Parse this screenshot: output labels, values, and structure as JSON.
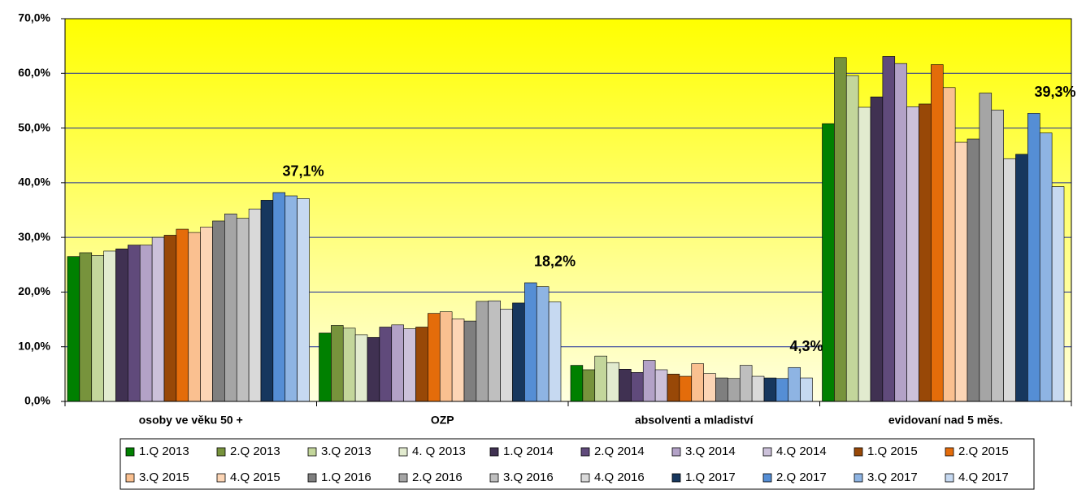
{
  "chart_data": {
    "type": "bar",
    "categories": [
      "osoby ve věku 50 +",
      "OZP",
      "absolventi a mladiství",
      "evidovaní nad 5 měs."
    ],
    "ylim": [
      0,
      70
    ],
    "yticks": [
      {
        "value": 0,
        "label": "0,0%"
      },
      {
        "value": 10,
        "label": "10,0%"
      },
      {
        "value": 20,
        "label": "20,0%"
      },
      {
        "value": 30,
        "label": "30,0%"
      },
      {
        "value": 40,
        "label": "40,0%"
      },
      {
        "value": 50,
        "label": "50,0%"
      },
      {
        "value": 60,
        "label": "60,0%"
      },
      {
        "value": 70,
        "label": "70,0%"
      }
    ],
    "grid": true,
    "legend": "bottom",
    "series": [
      {
        "name": "1.Q 2013",
        "color": "#008000",
        "values": [
          26.5,
          12.5,
          6.6,
          50.8
        ]
      },
      {
        "name": "2.Q 2013",
        "color": "#77933c",
        "values": [
          27.2,
          13.9,
          5.8,
          62.9
        ]
      },
      {
        "name": "3.Q 2013",
        "color": "#c3d69b",
        "values": [
          26.7,
          13.4,
          8.3,
          59.6
        ]
      },
      {
        "name": "4. Q 2013",
        "color": "#e2ebcf",
        "values": [
          27.5,
          12.2,
          7.1,
          53.8
        ]
      },
      {
        "name": "1.Q 2014",
        "color": "#403152",
        "values": [
          27.9,
          11.7,
          5.9,
          55.7
        ]
      },
      {
        "name": "2.Q 2014",
        "color": "#604a7b",
        "values": [
          28.6,
          13.6,
          5.3,
          63.1
        ]
      },
      {
        "name": "3.Q 2014",
        "color": "#b3a2c7",
        "values": [
          28.6,
          14.0,
          7.5,
          61.8
        ]
      },
      {
        "name": "4.Q 2014",
        "color": "#ccc1da",
        "values": [
          30.0,
          13.3,
          5.8,
          53.9
        ]
      },
      {
        "name": "1.Q 2015",
        "color": "#984807",
        "values": [
          30.4,
          13.6,
          5.0,
          54.4
        ]
      },
      {
        "name": "2.Q 2015",
        "color": "#e46c0a",
        "values": [
          31.5,
          16.1,
          4.6,
          61.6
        ]
      },
      {
        "name": "3.Q 2015",
        "color": "#fac090",
        "values": [
          30.9,
          16.4,
          6.9,
          57.4
        ]
      },
      {
        "name": "4.Q 2015",
        "color": "#fcd5b5",
        "values": [
          31.9,
          15.1,
          5.1,
          47.4
        ]
      },
      {
        "name": "1.Q 2016",
        "color": "#7f7f7f",
        "values": [
          33.0,
          14.7,
          4.3,
          48.0
        ]
      },
      {
        "name": "2.Q 2016",
        "color": "#a5a5a5",
        "values": [
          34.3,
          18.3,
          4.2,
          56.4
        ]
      },
      {
        "name": "3.Q 2016",
        "color": "#bfbfbf",
        "values": [
          33.5,
          18.4,
          6.6,
          53.3
        ]
      },
      {
        "name": "4.Q 2016",
        "color": "#d9d9d9",
        "values": [
          35.2,
          16.9,
          4.6,
          44.4
        ]
      },
      {
        "name": "1.Q 2017",
        "color": "#17375e",
        "values": [
          36.8,
          18.0,
          4.3,
          45.2
        ]
      },
      {
        "name": "2.Q 2017",
        "color": "#558ed5",
        "values": [
          38.2,
          21.7,
          4.2,
          52.7
        ]
      },
      {
        "name": "3.Q 2017",
        "color": "#8eb4e3",
        "values": [
          37.6,
          21.0,
          6.2,
          49.1
        ]
      },
      {
        "name": "4.Q 2017",
        "color": "#c6d9f1",
        "values": [
          37.1,
          18.2,
          4.3,
          39.3
        ],
        "value_labels": [
          "37,1%",
          "18,2%",
          "4,3%",
          "39,3%"
        ]
      }
    ]
  }
}
